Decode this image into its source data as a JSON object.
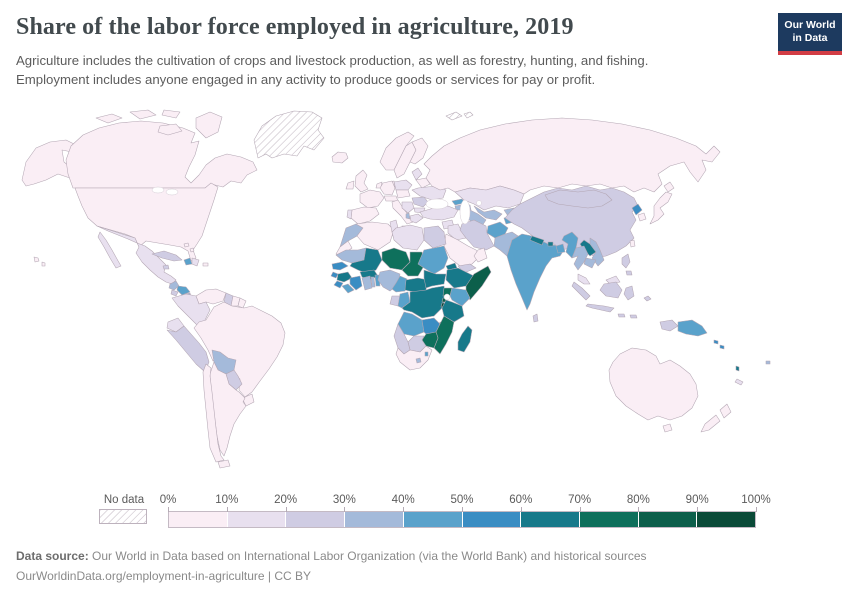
{
  "header": {
    "title": "Share of the labor force employed in agriculture, 2019",
    "subtitle_line1": "Agriculture includes the cultivation of crops and livestock production, as well as forestry, hunting, and fishing.",
    "subtitle_line2": "Employment includes anyone engaged in any activity to produce goods or services for pay or profit.",
    "logo_line1": "Our World",
    "logo_line2": "in Data",
    "logo_bg": "#1d3a5f",
    "logo_accent": "#d23d45"
  },
  "footer": {
    "source_label": "Data source:",
    "source_text": " Our World in Data based on International Labor Organization (via the World Bank) and historical sources",
    "link_line": "OurWorldinData.org/employment-in-agriculture | CC BY"
  },
  "chart_data": {
    "type": "choropleth_map",
    "title": "Share of the labor force employed in agriculture",
    "year": "2019",
    "unit": "% of labor force employed in agriculture",
    "projection": "world",
    "legend": {
      "no_data_label": "No data",
      "tick_labels": [
        "0%",
        "10%",
        "20%",
        "30%",
        "40%",
        "50%",
        "60%",
        "70%",
        "80%",
        "90%",
        "100%"
      ],
      "bins": [
        {
          "range": "0-10%",
          "color": "#faeef5"
        },
        {
          "range": "10-20%",
          "color": "#e8e0ef"
        },
        {
          "range": "20-30%",
          "color": "#cfcce3"
        },
        {
          "range": "30-40%",
          "color": "#a4bada"
        },
        {
          "range": "40-50%",
          "color": "#5aa2cb"
        },
        {
          "range": "50-60%",
          "color": "#3a8dc3"
        },
        {
          "range": "60-70%",
          "color": "#17798a"
        },
        {
          "range": "70-80%",
          "color": "#0e705c"
        },
        {
          "range": "80-90%",
          "color": "#0c5f4b"
        },
        {
          "range": "90-100%",
          "color": "#0a4a38"
        }
      ]
    },
    "countries": {
      "usa": 1,
      "canada": 1,
      "greenland": "no_data",
      "svalbard": "no_data",
      "iceland": 1,
      "mexico": 2,
      "guatemala": 4,
      "el_salvador": 3,
      "honduras": 5,
      "nicaragua": 4,
      "costa_rica": 2,
      "panama": 2,
      "cuba": 3,
      "jamaica": 3,
      "haiti": 5,
      "dominican_republic": 2,
      "puerto_rico": 1,
      "bahamas": 1,
      "venezuela": 1,
      "colombia": 2,
      "ecuador": 2,
      "guyana": 3,
      "suriname": 1,
      "french_guiana": 1,
      "peru": 3,
      "brazil": 1,
      "bolivia": 4,
      "paraguay": 3,
      "uruguay": 1,
      "argentina": 1,
      "chile": 1,
      "norway": 1,
      "sweden": 1,
      "finland": 1,
      "denmark": 1,
      "united_kingdom": 1,
      "ireland": 1,
      "france": 1,
      "spain": 1,
      "portugal": 2,
      "germany": 1,
      "benelux": 1,
      "poland": 2,
      "czechia_slovakia_hungary": 1,
      "switzerland_austria": 1,
      "italy": 1,
      "baltics": 2,
      "belarus": 1,
      "ukraine": 2,
      "romania": 3,
      "balkans": 2,
      "albania": 4,
      "greece": 2,
      "bulgaria": 2,
      "russia": 1,
      "kazakhstan": 2,
      "uzbekistan": 4,
      "turkmenistan": 4,
      "kyrgyzstan": 4,
      "tajikistan": 5,
      "georgia": 5,
      "armenia": 4,
      "azerbaijan": 4,
      "turkey": 2,
      "syria": 2,
      "iraq": 2,
      "iran": 3,
      "saudi_arabia": 1,
      "yemen": 3,
      "oman": 1,
      "jordan_israel": 1,
      "afghanistan": 5,
      "pakistan": 4,
      "morocco": 4,
      "western_sahara": 1,
      "algeria": 1,
      "tunisia": 2,
      "libya": 2,
      "egypt": 3,
      "mauritania": 4,
      "senegal": 6,
      "mali": 7,
      "burkina_faso": 7,
      "niger": 8,
      "chad": 8,
      "sudan": 5,
      "eritrea": 7,
      "ethiopia": 7,
      "somalia": 9,
      "guinea": 7,
      "guinea_bissau": 6,
      "sierra_leone": 6,
      "liberia": 5,
      "cote_divoire": 6,
      "ghana": 4,
      "togo": 4,
      "benin": 5,
      "nigeria": 4,
      "cameroon": 5,
      "central_african_republic": 7,
      "south_sudan": 7,
      "gabon": 3,
      "congo": 5,
      "drc": 7,
      "uganda": 8,
      "kenya": 5,
      "rwanda": 9,
      "burundi": 10,
      "tanzania": 7,
      "angola": 5,
      "zambia": 6,
      "malawi": 9,
      "mozambique": 8,
      "zimbabwe": 8,
      "botswana": 3,
      "namibia": 3,
      "south_africa": 1,
      "lesotho": 4,
      "eswatini": 5,
      "madagascar": 7,
      "china": 3,
      "mongolia": 3,
      "north_korea": 6,
      "south_korea": 1,
      "japan": 1,
      "taiwan": 1,
      "india": 5,
      "nepal": 7,
      "bhutan": 7,
      "bangladesh": 5,
      "sri_lanka": 3,
      "myanmar": 5,
      "thailand": 4,
      "laos": 7,
      "vietnam": 4,
      "cambodia": 4,
      "malaysia": 2,
      "indonesia": 3,
      "philippines": 3,
      "papua_new_guinea": 5,
      "solomon_islands": 6,
      "vanuatu": 7,
      "fiji": 4,
      "new_caledonia": 2,
      "australia": 1,
      "new_zealand": 1
    }
  }
}
